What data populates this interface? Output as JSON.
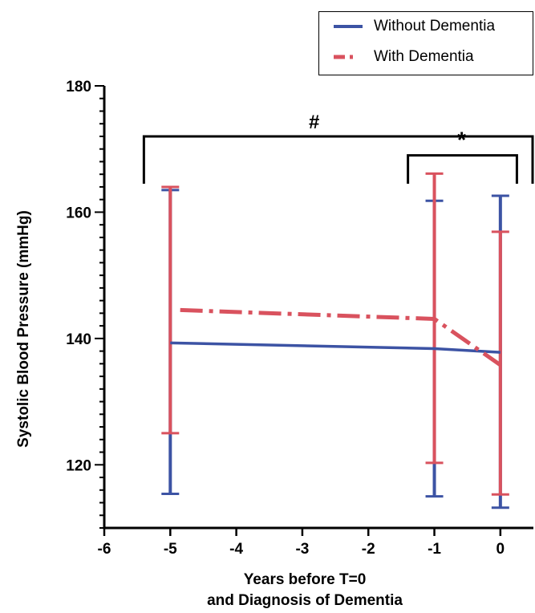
{
  "chart_data": {
    "type": "line",
    "title": "",
    "xlabel_lines": [
      "Years before T=0",
      "and Diagnosis of Dementia"
    ],
    "ylabel": "Systolic Blood Pressure (mmHg)",
    "xlim": [
      -6,
      0.5
    ],
    "ylim": [
      110,
      180
    ],
    "x_ticks": [
      -6,
      -5,
      -4,
      -3,
      -2,
      -1,
      0
    ],
    "x_tick_labels": [
      "-6",
      "-5",
      "-4",
      "-3",
      "-2",
      "-1",
      "0"
    ],
    "y_ticks": [
      120,
      140,
      160,
      180
    ],
    "y_tick_labels": [
      "120",
      "140",
      "160",
      "180"
    ],
    "legend_position": "top-right",
    "series": [
      {
        "name": "Without Dementia",
        "color": "#3c53a4",
        "line_style": "solid",
        "points": [
          {
            "x": -5,
            "y": 139.3,
            "err_low": 115.4,
            "err_high": 163.5
          },
          {
            "x": -1,
            "y": 138.4,
            "err_low": 115.0,
            "err_high": 161.8
          },
          {
            "x": 0,
            "y": 137.8,
            "err_low": 113.2,
            "err_high": 162.6
          }
        ]
      },
      {
        "name": "With Dementia",
        "color": "#d9525e",
        "line_style": "dash-dot",
        "points": [
          {
            "x": -4.85,
            "y": 144.5
          },
          {
            "x": -1,
            "y": 143.1,
            "err_low": 120.3,
            "err_high": 166.1
          },
          {
            "x": 0,
            "y": 135.8,
            "err_low": 115.3,
            "err_high": 156.9
          }
        ],
        "extra_errorbars": [
          {
            "x": -5,
            "err_low": 125.0,
            "err_high": 164.0
          }
        ]
      }
    ],
    "annotations": [
      {
        "label": "#",
        "x_start": -5.4,
        "x_end": 0.5,
        "y_bracket": 172,
        "y_leg_end": 164.5
      },
      {
        "label": "*",
        "x_start": -1.4,
        "x_end": 0.25,
        "y_bracket": 169,
        "y_leg_end": 164.5
      }
    ]
  }
}
